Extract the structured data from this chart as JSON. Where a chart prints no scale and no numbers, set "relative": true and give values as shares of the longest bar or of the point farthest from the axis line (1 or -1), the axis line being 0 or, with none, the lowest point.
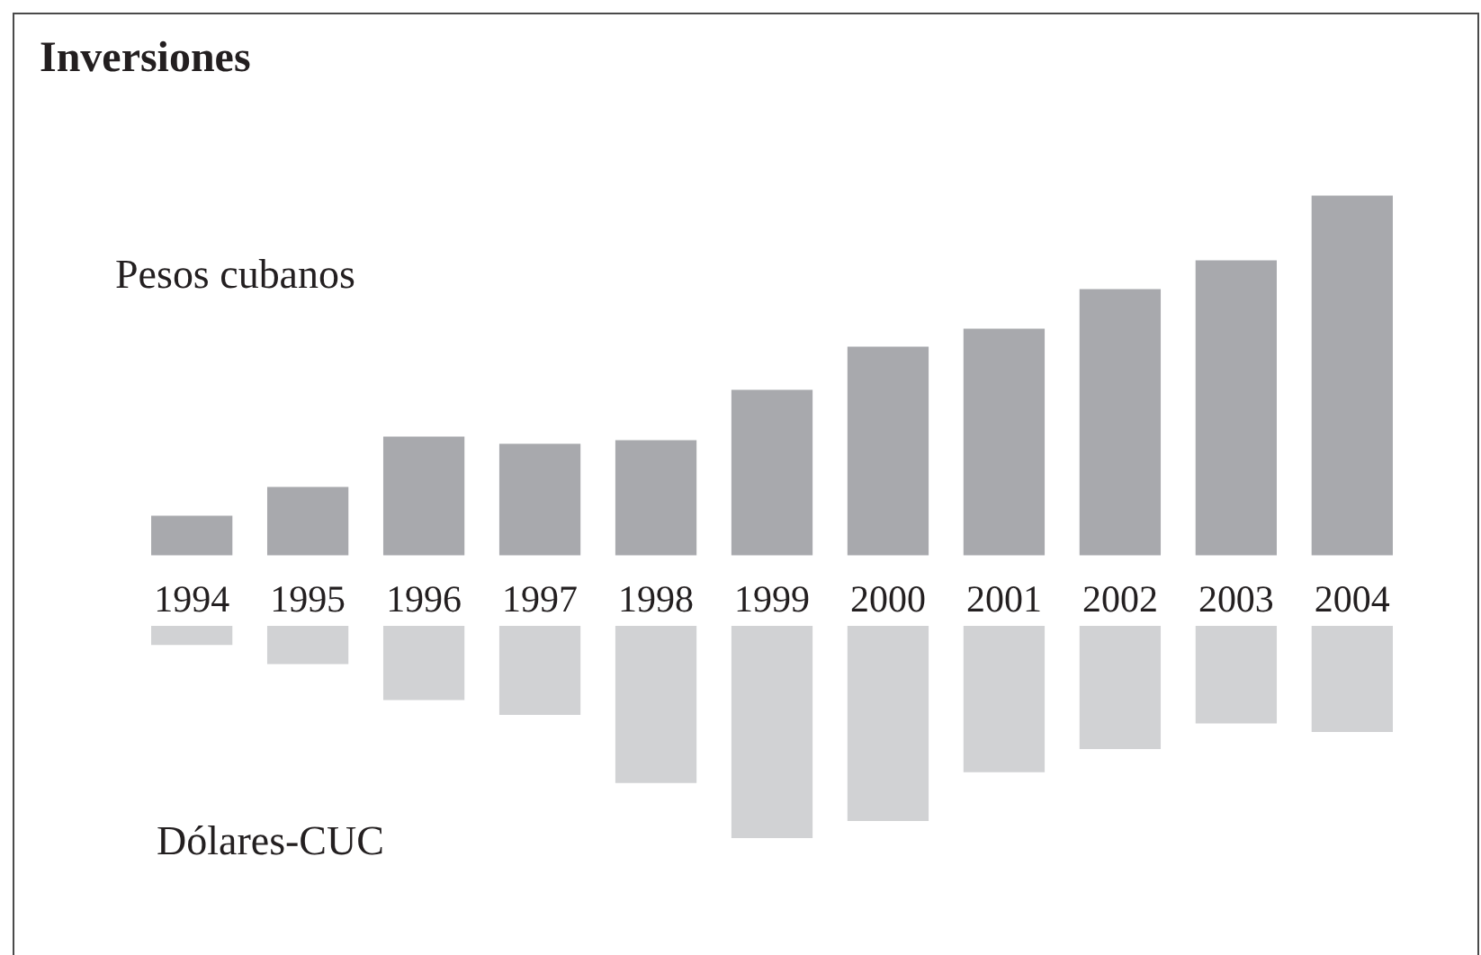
{
  "chart_data": [
    {
      "type": "bar",
      "title": "Inversiones",
      "relative": true,
      "categories": [
        "1994",
        "1995",
        "1996",
        "1997",
        "1998",
        "1999",
        "2000",
        "2001",
        "2002",
        "2003",
        "2004"
      ],
      "series": [
        {
          "name": "Pesos cubanos",
          "color": "#a8a9ad",
          "values": [
            0.11,
            0.19,
            0.33,
            0.31,
            0.32,
            0.46,
            0.58,
            0.63,
            0.74,
            0.82,
            1
          ]
        }
      ]
    },
    {
      "type": "bar",
      "relative": true,
      "tick_labels": false,
      "categories": [
        "1994",
        "1995",
        "1996",
        "1997",
        "1998",
        "1999",
        "2000",
        "2001",
        "2002",
        "2003",
        "2004"
      ],
      "series": [
        {
          "name": "Dólares-CUC",
          "color": "#d1d2d4",
          "values": [
            -0.09,
            -0.18,
            -0.35,
            -0.42,
            -0.74,
            -1,
            -0.92,
            -0.69,
            -0.58,
            -0.46,
            -0.5
          ]
        }
      ]
    }
  ]
}
